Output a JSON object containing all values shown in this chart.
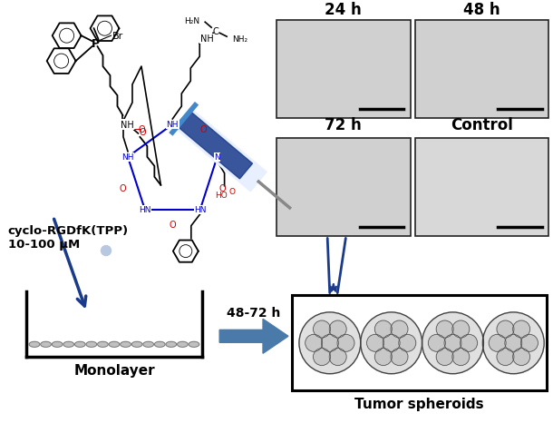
{
  "bg_color": "#ffffff",
  "text_cyclo_line1": "cyclo-RGDfK(TPP)",
  "text_cyclo_line2": "10-100 μM",
  "text_monolayer": "Monolayer",
  "text_time": "48-72 h",
  "text_tumor": "Tumor spheroids",
  "text_24h": "24 h",
  "text_48h": "48 h",
  "text_72h": "72 h",
  "text_control": "Control",
  "blue_arrow_color": "#1a3a8a",
  "box_arrow_color": "#4a7aaa",
  "label_fontsize": 11,
  "chemical_blue": "#0000cc",
  "chemical_red": "#cc0000",
  "micro_bg": "#d8d8d8",
  "micro_edge": "#222222",
  "spheroid_fill": "#c8c8c8",
  "spheroid_edge": "#444444",
  "cell_fill": "#d0d0d0",
  "cell_edge": "#555555"
}
